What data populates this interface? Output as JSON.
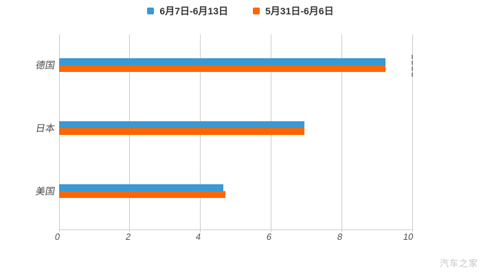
{
  "legend": {
    "items": [
      {
        "label": "6月7日-6月13日",
        "color": "#3899d4"
      },
      {
        "label": "5月31日-6月6日",
        "color": "#ff6600"
      }
    ]
  },
  "watermark": "汽车之家",
  "colors": {
    "series_blue": "#3899d4",
    "series_orange": "#ff6600",
    "grid": "#cccccc",
    "axis_label": "#4d4d4d",
    "legend_text": "#333333",
    "watermark": "#c4c4c4",
    "mark_dash": "#8a8a8a",
    "background": "#ffffff"
  },
  "chart_data": {
    "type": "bar",
    "orientation": "horizontal",
    "title": "",
    "xlabel": "",
    "ylabel": "",
    "categories": [
      "德国",
      "日本",
      "美国"
    ],
    "series": [
      {
        "name": "6月7日-6月13日",
        "color": "#3899d4",
        "values": [
          9.25,
          6.95,
          4.65
        ]
      },
      {
        "name": "5月31日-6月6日",
        "color": "#ff6600",
        "values": [
          9.25,
          6.95,
          4.7
        ]
      }
    ],
    "xlim": [
      0,
      10
    ],
    "xticks": [
      0,
      2,
      4,
      6,
      8,
      10
    ],
    "grid": true,
    "legend_position": "top",
    "annotations": [
      {
        "type": "dashed-vertical-line",
        "x": 10,
        "category": "德国"
      }
    ]
  }
}
